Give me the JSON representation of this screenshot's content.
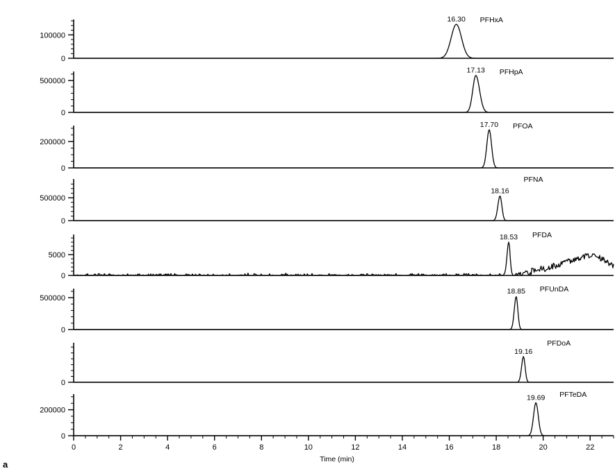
{
  "chart_data": {
    "type": "line",
    "subtype": "stacked chromatograms",
    "panel_tag": "a",
    "xlabel": "Time (min)",
    "xlim": [
      0,
      23
    ],
    "x_ticks": [
      0,
      2,
      4,
      6,
      8,
      10,
      12,
      14,
      16,
      18,
      20,
      22
    ],
    "x_minor_step": 0.5,
    "line_color": "#000000",
    "panels": [
      {
        "compound": "PFHxA",
        "peak_time": 16.3,
        "peak_label": "16.30",
        "ylim": [
          0,
          160000
        ],
        "y_ticks": [
          0,
          100000
        ],
        "y_tick_labels": [
          "0",
          "100000"
        ],
        "y_minor_step": 20000,
        "peak_height": 145000,
        "peak_width": 0.22,
        "tail": 0.22,
        "noise": 0
      },
      {
        "compound": "PFHpA",
        "peak_time": 17.13,
        "peak_label": "17.13",
        "ylim": [
          0,
          620000
        ],
        "y_ticks": [
          0,
          500000
        ],
        "y_tick_labels": [
          "0",
          "500000"
        ],
        "y_minor_step": 100000,
        "peak_height": 580000,
        "peak_width": 0.13,
        "tail": 0.16,
        "noise": 0
      },
      {
        "compound": "PFOA",
        "peak_time": 17.7,
        "peak_label": "17.70",
        "ylim": [
          0,
          310000
        ],
        "y_ticks": [
          0,
          200000
        ],
        "y_tick_labels": [
          "0",
          "200000"
        ],
        "y_minor_step": 50000,
        "peak_height": 290000,
        "peak_width": 0.1,
        "tail": 0.1,
        "noise": 0
      },
      {
        "compound": "PFNA",
        "peak_time": 18.16,
        "peak_label": "18.16",
        "ylim": [
          0,
          880000
        ],
        "y_ticks": [
          0,
          500000
        ],
        "y_tick_labels": [
          "0",
          "500000"
        ],
        "y_minor_step": 100000,
        "peak_height": 540000,
        "peak_width": 0.09,
        "tail": 0.08,
        "noise": 0
      },
      {
        "compound": "PFDA",
        "peak_time": 18.53,
        "peak_label": "18.53",
        "ylim": [
          0,
          9500
        ],
        "y_ticks": [
          0,
          5000
        ],
        "y_tick_labels": [
          "0",
          "5000"
        ],
        "y_minor_step": 1000,
        "peak_height": 8000,
        "peak_width": 0.07,
        "tail": 0.06,
        "noise": 450,
        "hump": {
          "start": 18.75,
          "center": 21.9,
          "height": 4800,
          "end": 23.0
        }
      },
      {
        "compound": "PFUnDA",
        "peak_time": 18.85,
        "peak_label": "18.85",
        "ylim": [
          0,
          620000
        ],
        "y_ticks": [
          0,
          500000
        ],
        "y_tick_labels": [
          "0",
          "500000"
        ],
        "y_minor_step": 100000,
        "peak_height": 520000,
        "peak_width": 0.08,
        "tail": 0.07,
        "noise": 0
      },
      {
        "compound": "PFDoA",
        "peak_time": 19.16,
        "peak_label": "19.16",
        "ylim": [
          0,
          650000
        ],
        "y_ticks": [
          0
        ],
        "y_tick_labels": [
          "0"
        ],
        "y_minor_step": 100000,
        "peak_height": 440000,
        "peak_width": 0.08,
        "tail": 0.07,
        "noise": 0
      },
      {
        "compound": "PFTeDA",
        "peak_time": 19.69,
        "peak_label": "19.69",
        "ylim": [
          0,
          310000
        ],
        "y_ticks": [
          0,
          200000
        ],
        "y_tick_labels": [
          "0",
          "200000"
        ],
        "y_minor_step": 50000,
        "peak_height": 255000,
        "peak_width": 0.1,
        "tail": 0.1,
        "noise": 0
      }
    ]
  }
}
